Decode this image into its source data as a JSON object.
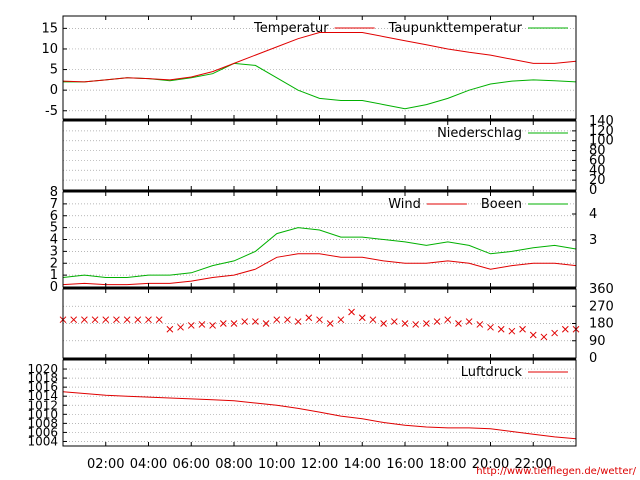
{
  "source_url": "http://www.tiefflegen.de/wetter/",
  "colors": {
    "red": "#e00000",
    "green": "#00b000",
    "grid": "#a0a0a0",
    "frame": "#000000"
  },
  "x_axis": {
    "start_hour": 0,
    "end_hour": 24,
    "tick_labels": [
      "02:00",
      "04:00",
      "06:00",
      "08:00",
      "10:00",
      "12:00",
      "14:00",
      "16:00",
      "18:00",
      "20:00",
      "22:00"
    ],
    "tick_hours": [
      2,
      4,
      6,
      8,
      10,
      12,
      14,
      16,
      18,
      20,
      22
    ]
  },
  "chart_data": [
    {
      "type": "line",
      "panel": "temperature",
      "ylim": [
        -7,
        18
      ],
      "yticks": [
        15,
        10,
        5,
        0,
        -5
      ],
      "grid": true,
      "legend_placement": "top-right",
      "series": [
        {
          "name": "Temperatur",
          "color": "#e00000",
          "x": [
            0,
            1,
            2,
            3,
            4,
            5,
            6,
            7,
            8,
            9,
            10,
            11,
            12,
            13,
            14,
            15,
            16,
            17,
            18,
            19,
            20,
            21,
            22,
            23,
            24
          ],
          "y": [
            2.2,
            2.0,
            2.5,
            3.0,
            2.8,
            2.5,
            3.2,
            4.5,
            6.5,
            8.5,
            10.5,
            12.5,
            14.0,
            14.0,
            14.0,
            13.0,
            12.0,
            11.0,
            10.0,
            9.2,
            8.5,
            7.5,
            6.5,
            6.5,
            7.0
          ]
        },
        {
          "name": "Taupunkttemperatur",
          "color": "#00b000",
          "x": [
            0,
            1,
            2,
            3,
            4,
            5,
            6,
            7,
            8,
            9,
            10,
            11,
            12,
            13,
            14,
            15,
            16,
            17,
            18,
            19,
            20,
            21,
            22,
            23,
            24
          ],
          "y": [
            2.0,
            2.0,
            2.5,
            3.0,
            2.8,
            2.3,
            3.0,
            4.0,
            6.5,
            6.0,
            3.0,
            0.0,
            -2.0,
            -2.5,
            -2.5,
            -3.5,
            -4.5,
            -3.5,
            -2.0,
            0.0,
            1.5,
            2.2,
            2.5,
            2.3,
            2.0
          ]
        }
      ]
    },
    {
      "type": "line",
      "panel": "precipitation",
      "ylim": [
        0,
        140
      ],
      "yticks_right": [
        140,
        120,
        100,
        80,
        60,
        40,
        20,
        0
      ],
      "grid": true,
      "legend_placement": "top-right",
      "series": [
        {
          "name": "Niederschlag",
          "color": "#00b000",
          "x": [
            0,
            24
          ],
          "y": [
            0,
            0
          ]
        }
      ]
    },
    {
      "type": "line",
      "panel": "wind",
      "ylim": [
        0,
        8
      ],
      "yticks": [
        8,
        7,
        6,
        5,
        4,
        3,
        2,
        1,
        0
      ],
      "yticks_right": [
        4,
        3
      ],
      "grid": true,
      "legend_placement": "top-right",
      "series": [
        {
          "name": "Wind",
          "color": "#e00000",
          "x": [
            0,
            1,
            2,
            3,
            4,
            5,
            6,
            7,
            8,
            9,
            10,
            11,
            12,
            13,
            14,
            15,
            16,
            17,
            18,
            19,
            20,
            21,
            22,
            23,
            24
          ],
          "y": [
            0.2,
            0.3,
            0.2,
            0.2,
            0.3,
            0.3,
            0.5,
            0.8,
            1.0,
            1.5,
            2.5,
            2.8,
            2.8,
            2.5,
            2.5,
            2.2,
            2.0,
            2.0,
            2.2,
            2.0,
            1.5,
            1.8,
            2.0,
            2.0,
            1.8
          ]
        },
        {
          "name": "Boeen",
          "color": "#00b000",
          "x": [
            0,
            1,
            2,
            3,
            4,
            5,
            6,
            7,
            8,
            9,
            10,
            11,
            12,
            13,
            14,
            15,
            16,
            17,
            18,
            19,
            20,
            21,
            22,
            23,
            24
          ],
          "y": [
            0.8,
            1.0,
            0.8,
            0.8,
            1.0,
            1.0,
            1.2,
            1.8,
            2.2,
            3.0,
            4.5,
            5.0,
            4.8,
            4.2,
            4.2,
            4.0,
            3.8,
            3.5,
            3.8,
            3.5,
            2.8,
            3.0,
            3.3,
            3.5,
            3.2
          ]
        }
      ]
    },
    {
      "type": "scatter",
      "panel": "wind_direction",
      "ylim": [
        0,
        360
      ],
      "yticks_right": [
        360,
        270,
        180,
        90,
        0
      ],
      "grid": true,
      "series": [
        {
          "color": "#e00000",
          "x": [
            0,
            0.5,
            1,
            1.5,
            2,
            2.5,
            3,
            3.5,
            4,
            4.5,
            5,
            5.5,
            6,
            6.5,
            7,
            7.5,
            8,
            8.5,
            9,
            9.5,
            10,
            10.5,
            11,
            11.5,
            12,
            12.5,
            13,
            13.5,
            14,
            14.5,
            15,
            15.5,
            16,
            16.5,
            17,
            17.5,
            18,
            18.5,
            19,
            19.5,
            20,
            20.5,
            21,
            21.5,
            22,
            22.5,
            23,
            23.5,
            24
          ],
          "y": [
            200,
            200,
            200,
            200,
            200,
            200,
            200,
            200,
            200,
            200,
            150,
            160,
            170,
            175,
            170,
            180,
            180,
            190,
            190,
            180,
            200,
            200,
            190,
            210,
            200,
            180,
            200,
            240,
            210,
            200,
            180,
            190,
            180,
            175,
            180,
            190,
            200,
            180,
            190,
            175,
            160,
            150,
            140,
            150,
            120,
            110,
            130,
            150,
            150
          ]
        }
      ]
    },
    {
      "type": "line",
      "panel": "pressure",
      "ylim": [
        1003,
        1022
      ],
      "yticks": [
        1020,
        1018,
        1016,
        1014,
        1012,
        1010,
        1008,
        1006,
        1004
      ],
      "grid": true,
      "legend_placement": "top-right",
      "series": [
        {
          "name": "Luftdruck",
          "color": "#e00000",
          "x": [
            0,
            1,
            2,
            3,
            4,
            5,
            6,
            7,
            8,
            9,
            10,
            11,
            12,
            13,
            14,
            15,
            16,
            17,
            18,
            19,
            20,
            21,
            22,
            23,
            24
          ],
          "y": [
            1015.0,
            1014.6,
            1014.2,
            1014.0,
            1013.8,
            1013.6,
            1013.4,
            1013.2,
            1013.0,
            1012.5,
            1012.0,
            1011.3,
            1010.5,
            1009.6,
            1009.0,
            1008.2,
            1007.6,
            1007.2,
            1007.0,
            1007.0,
            1006.8,
            1006.2,
            1005.6,
            1005.0,
            1004.6
          ]
        }
      ]
    }
  ]
}
